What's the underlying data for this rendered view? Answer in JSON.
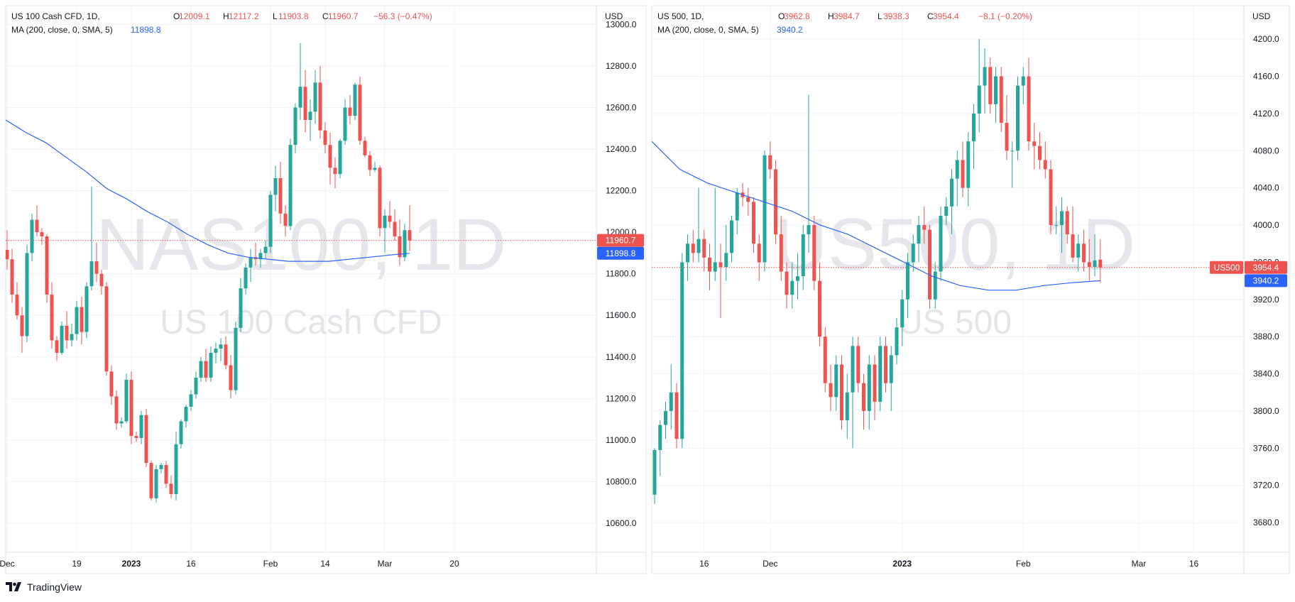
{
  "branding": {
    "name": "TradingView"
  },
  "colors": {
    "up": "#26a69a",
    "down": "#ef5350",
    "ma": "#2962ff",
    "grid": "#f0f3fa",
    "text": "#131722",
    "watermark": "#d1d4dc"
  },
  "chart_data": [
    {
      "type": "candlestick",
      "title": "US 100 Cash CFD, 1D,",
      "ohlc_header": {
        "o": "12009.1",
        "h": "12117.2",
        "l": "11903.8",
        "c": "11960.7",
        "change": "−56.3 (−0.47%)"
      },
      "ma_legend": {
        "label": "MA (200, close, 0, SMA, 5)",
        "value": "11898.8"
      },
      "currency": "USD",
      "watermark": {
        "symbol": "NAS100, 1D",
        "name": "US 100 Cash CFD"
      },
      "y_ticks": [
        "13000.0",
        "12800.0",
        "12600.0",
        "12400.0",
        "12200.0",
        "12000.0",
        "11800.0",
        "11600.0",
        "11400.0",
        "11200.0",
        "11000.0",
        "10800.0",
        "10600.0"
      ],
      "x_ticks": [
        "Dec",
        "19",
        "2023",
        "16",
        "Feb",
        "14",
        "Mar",
        "20"
      ],
      "x_tick_index": [
        0,
        14,
        25,
        37,
        53,
        64,
        76,
        90
      ],
      "last_price": {
        "label": "11960.7",
        "value": 11960.7
      },
      "ma_price": {
        "label": "11898.8",
        "value": 11898.8
      },
      "ylim": [
        10460,
        13090
      ],
      "candles": [
        [
          11915,
          12010,
          11820,
          11870
        ],
        [
          11870,
          11920,
          11660,
          11700
        ],
        [
          11700,
          11760,
          11580,
          11600
        ],
        [
          11600,
          11640,
          11420,
          11500
        ],
        [
          11500,
          11940,
          11470,
          11900
        ],
        [
          11900,
          12090,
          11860,
          12060
        ],
        [
          12060,
          12130,
          11980,
          12000
        ],
        [
          12000,
          12020,
          11940,
          11980
        ],
        [
          11980,
          11990,
          11660,
          11700
        ],
        [
          11700,
          11760,
          11440,
          11480
        ],
        [
          11480,
          11500,
          11380,
          11420
        ],
        [
          11420,
          11570,
          11410,
          11550
        ],
        [
          11550,
          11620,
          11440,
          11480
        ],
        [
          11480,
          11560,
          11450,
          11510
        ],
        [
          11510,
          11670,
          11480,
          11640
        ],
        [
          11640,
          11690,
          11460,
          11520
        ],
        [
          11520,
          11760,
          11490,
          11740
        ],
        [
          11740,
          12220,
          11720,
          11860
        ],
        [
          11860,
          11950,
          11760,
          11800
        ],
        [
          11800,
          11820,
          11700,
          11740
        ],
        [
          11740,
          11760,
          11310,
          11330
        ],
        [
          11330,
          11360,
          11170,
          11210
        ],
        [
          11210,
          11240,
          11050,
          11080
        ],
        [
          11080,
          11110,
          11060,
          11090
        ],
        [
          11090,
          11320,
          11080,
          11290
        ],
        [
          11290,
          11330,
          10980,
          11020
        ],
        [
          11020,
          11040,
          10990,
          11010
        ],
        [
          11010,
          11140,
          10980,
          11120
        ],
        [
          11120,
          11150,
          10870,
          10890
        ],
        [
          10890,
          10900,
          10710,
          10720
        ],
        [
          10720,
          10880,
          10700,
          10860
        ],
        [
          10860,
          10890,
          10840,
          10880
        ],
        [
          10880,
          10900,
          10770,
          10790
        ],
        [
          10790,
          10830,
          10720,
          10740
        ],
        [
          10740,
          11040,
          10710,
          10980
        ],
        [
          10980,
          11100,
          10960,
          11090
        ],
        [
          11090,
          11170,
          11060,
          11160
        ],
        [
          11160,
          11240,
          11140,
          11220
        ],
        [
          11220,
          11330,
          11200,
          11300
        ],
        [
          11300,
          11400,
          11280,
          11380
        ],
        [
          11380,
          11440,
          11280,
          11300
        ],
        [
          11300,
          11450,
          11280,
          11420
        ],
        [
          11420,
          11470,
          11370,
          11440
        ],
        [
          11440,
          11490,
          11380,
          11460
        ],
        [
          11460,
          11500,
          11340,
          11360
        ],
        [
          11360,
          11410,
          11200,
          11240
        ],
        [
          11240,
          11570,
          11220,
          11540
        ],
        [
          11540,
          11780,
          11520,
          11730
        ],
        [
          11730,
          11850,
          11700,
          11830
        ],
        [
          11830,
          11920,
          11760,
          11880
        ],
        [
          11880,
          11950,
          11840,
          11870
        ],
        [
          11870,
          11920,
          11830,
          11900
        ],
        [
          11900,
          11960,
          11870,
          11930
        ],
        [
          11930,
          12200,
          11900,
          12180
        ],
        [
          12180,
          12320,
          12100,
          12260
        ],
        [
          12260,
          12340,
          12040,
          12090
        ],
        [
          12090,
          12130,
          11980,
          12030
        ],
        [
          12030,
          12450,
          12010,
          12420
        ],
        [
          12420,
          12620,
          12380,
          12600
        ],
        [
          12600,
          12910,
          12540,
          12700
        ],
        [
          12700,
          12780,
          12480,
          12540
        ],
        [
          12540,
          12640,
          12440,
          12580
        ],
        [
          12580,
          12780,
          12520,
          12720
        ],
        [
          12720,
          12800,
          12450,
          12490
        ],
        [
          12490,
          12530,
          12380,
          12420
        ],
        [
          12420,
          12480,
          12230,
          12310
        ],
        [
          12310,
          12360,
          12210,
          12280
        ],
        [
          12280,
          12450,
          12260,
          12440
        ],
        [
          12440,
          12640,
          12420,
          12600
        ],
        [
          12600,
          12660,
          12520,
          12560
        ],
        [
          12560,
          12720,
          12540,
          12710
        ],
        [
          12710,
          12750,
          12420,
          12440
        ],
        [
          12440,
          12460,
          12360,
          12370
        ],
        [
          12370,
          12390,
          12270,
          12300
        ],
        [
          12300,
          12340,
          12290,
          12310
        ],
        [
          12310,
          12320,
          11980,
          12020
        ],
        [
          12020,
          12110,
          11900,
          12080
        ],
        [
          12080,
          12150,
          12020,
          12050
        ],
        [
          12050,
          12110,
          11960,
          11980
        ],
        [
          11980,
          12060,
          11840,
          11880
        ],
        [
          11880,
          12040,
          11860,
          12010
        ],
        [
          12010,
          12130,
          11910,
          11960
        ]
      ],
      "ma": [
        12540,
        12480,
        12430,
        12360,
        12290,
        12210,
        12160,
        12100,
        12050,
        11990,
        11940,
        11900,
        11880,
        11870,
        11860,
        11860,
        11860,
        11870,
        11880,
        11890,
        11898.8
      ]
    },
    {
      "type": "candlestick",
      "title": "US 500, 1D,",
      "ohlc_header": {
        "o": "3962.8",
        "h": "3984.7",
        "l": "3938.3",
        "c": "3954.4",
        "change": "−8.1 (−0.20%)"
      },
      "ma_legend": {
        "label": "MA (200, close, 0, SMA, 5)",
        "value": "3940.2"
      },
      "currency": "USD",
      "watermark": {
        "symbol": "US500, 1D",
        "name": "US 500"
      },
      "y_ticks": [
        "4200.0",
        "4160.0",
        "4120.0",
        "4080.0",
        "4040.0",
        "4000.0",
        "3960.0",
        "3920.0",
        "3880.0",
        "3840.0",
        "3800.0",
        "3760.0",
        "3720.0",
        "3680.0"
      ],
      "x_ticks": [
        "16",
        "Dec",
        "2023",
        "Feb",
        "Mar",
        "16"
      ],
      "x_tick_index": [
        9,
        21,
        45,
        67,
        88,
        98
      ],
      "last_price": {
        "label": "3954.4",
        "value": 3954.4,
        "symbol": "US500"
      },
      "ma_price": {
        "label": "3940.2",
        "value": 3940.2
      },
      "ylim": [
        3648,
        4236
      ],
      "candles": [
        [
          3710,
          3760,
          3700,
          3758
        ],
        [
          3758,
          3790,
          3730,
          3785
        ],
        [
          3785,
          3810,
          3770,
          3800
        ],
        [
          3800,
          3850,
          3780,
          3820
        ],
        [
          3820,
          3830,
          3760,
          3770
        ],
        [
          3770,
          3970,
          3760,
          3960
        ],
        [
          3960,
          3990,
          3940,
          3980
        ],
        [
          3980,
          3995,
          3960,
          3970
        ],
        [
          3970,
          4040,
          3960,
          3985
        ],
        [
          3985,
          3995,
          3950,
          3965
        ],
        [
          3965,
          3980,
          3930,
          3950
        ],
        [
          3950,
          4040,
          3940,
          3960
        ],
        [
          3960,
          3980,
          3900,
          3955
        ],
        [
          3955,
          4000,
          3940,
          3970
        ],
        [
          3970,
          4010,
          3960,
          4005
        ],
        [
          4005,
          4040,
          3990,
          4035
        ],
        [
          4035,
          4045,
          4020,
          4030
        ],
        [
          4030,
          4040,
          4010,
          4025
        ],
        [
          4025,
          4030,
          3970,
          3980
        ],
        [
          3980,
          3990,
          3940,
          3960
        ],
        [
          3960,
          4080,
          3950,
          4075
        ],
        [
          4075,
          4090,
          4050,
          4060
        ],
        [
          4060,
          4070,
          3980,
          3990
        ],
        [
          3990,
          4010,
          3940,
          3950
        ],
        [
          3950,
          3960,
          3910,
          3925
        ],
        [
          3925,
          3960,
          3910,
          3940
        ],
        [
          3940,
          3970,
          3920,
          3945
        ],
        [
          3945,
          4000,
          3930,
          3990
        ],
        [
          3990,
          4140,
          3970,
          4000
        ],
        [
          4000,
          4010,
          3930,
          3940
        ],
        [
          3940,
          3960,
          3870,
          3880
        ],
        [
          3880,
          3890,
          3820,
          3830
        ],
        [
          3830,
          3850,
          3800,
          3815
        ],
        [
          3815,
          3860,
          3800,
          3850
        ],
        [
          3850,
          3860,
          3780,
          3790
        ],
        [
          3790,
          3840,
          3770,
          3820
        ],
        [
          3820,
          3880,
          3760,
          3870
        ],
        [
          3870,
          3880,
          3820,
          3830
        ],
        [
          3830,
          3840,
          3780,
          3800
        ],
        [
          3800,
          3860,
          3780,
          3850
        ],
        [
          3850,
          3860,
          3790,
          3810
        ],
        [
          3810,
          3880,
          3800,
          3870
        ],
        [
          3870,
          3880,
          3820,
          3830
        ],
        [
          3830,
          3870,
          3800,
          3860
        ],
        [
          3860,
          3900,
          3850,
          3890
        ],
        [
          3890,
          3930,
          3870,
          3920
        ],
        [
          3920,
          3970,
          3900,
          3960
        ],
        [
          3960,
          3990,
          3950,
          3980
        ],
        [
          3980,
          4010,
          3960,
          4000
        ],
        [
          4000,
          4020,
          3980,
          3995
        ],
        [
          3995,
          4000,
          3910,
          3920
        ],
        [
          3920,
          3960,
          3910,
          3950
        ],
        [
          3950,
          4020,
          3940,
          4010
        ],
        [
          4010,
          4030,
          4000,
          4020
        ],
        [
          4020,
          4060,
          3990,
          4050
        ],
        [
          4050,
          4080,
          4020,
          4070
        ],
        [
          4070,
          4090,
          4030,
          4040
        ],
        [
          4040,
          4100,
          4020,
          4090
        ],
        [
          4090,
          4130,
          4060,
          4120
        ],
        [
          4120,
          4200,
          4100,
          4150
        ],
        [
          4150,
          4190,
          4120,
          4170
        ],
        [
          4170,
          4180,
          4120,
          4130
        ],
        [
          4130,
          4170,
          4110,
          4160
        ],
        [
          4160,
          4170,
          4100,
          4110
        ],
        [
          4110,
          4140,
          4070,
          4080
        ],
        [
          4080,
          4090,
          4040,
          4080
        ],
        [
          4080,
          4160,
          4070,
          4150
        ],
        [
          4150,
          4170,
          4130,
          4160
        ],
        [
          4160,
          4180,
          4080,
          4090
        ],
        [
          4090,
          4110,
          4060,
          4085
        ],
        [
          4085,
          4100,
          4060,
          4070
        ],
        [
          4070,
          4090,
          4050,
          4060
        ],
        [
          4060,
          4070,
          3990,
          4000
        ],
        [
          4000,
          4020,
          3990,
          4000
        ],
        [
          4000,
          4030,
          3970,
          4015
        ],
        [
          4015,
          4020,
          3980,
          3990
        ],
        [
          3990,
          4020,
          3960,
          3965
        ],
        [
          3965,
          3990,
          3950,
          3980
        ],
        [
          3980,
          3995,
          3950,
          3960
        ],
        [
          3960,
          3985,
          3940,
          3955
        ],
        [
          3955,
          3990,
          3945,
          3962
        ],
        [
          3962.8,
          3984.7,
          3938.3,
          3954.4
        ]
      ],
      "ma": [
        4090,
        4060,
        4045,
        4035,
        4025,
        4015,
        4000,
        3990,
        3975,
        3960,
        3945,
        3935,
        3930,
        3930,
        3935,
        3938,
        3940.2
      ]
    }
  ]
}
